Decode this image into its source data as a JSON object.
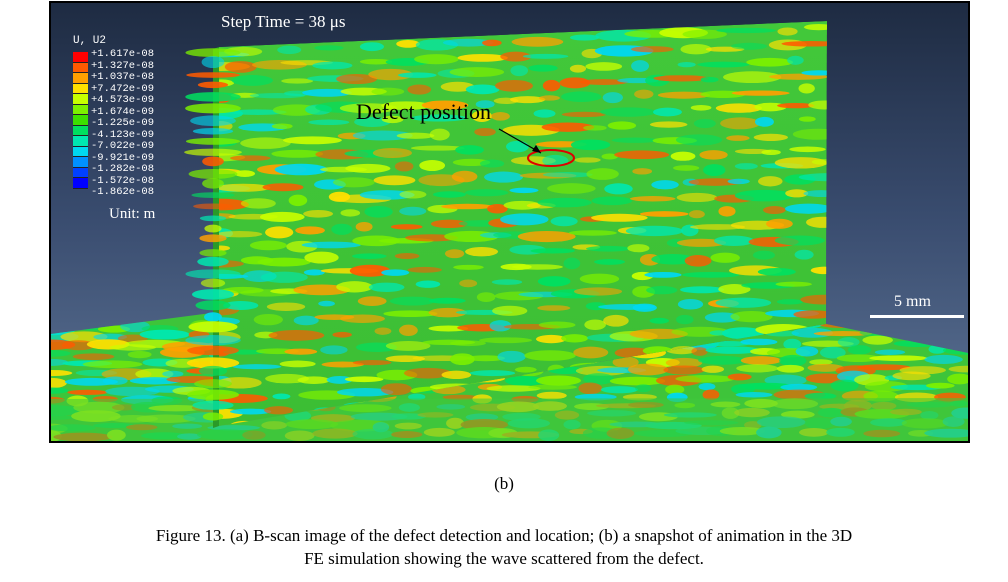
{
  "figure": {
    "step_time": "Step Time = 38 μs",
    "legend": {
      "title": "U, U2",
      "values": [
        "+1.617e-08",
        "+1.327e-08",
        "+1.037e-08",
        "+7.472e-09",
        "+4.573e-09",
        "+1.674e-09",
        "-1.225e-09",
        "-4.123e-09",
        "-7.022e-09",
        "-9.921e-09",
        "-1.282e-08",
        "-1.572e-08",
        "-1.862e-08"
      ],
      "colors": [
        "#ff0000",
        "#ff5a00",
        "#ffa000",
        "#ffe000",
        "#c8ff00",
        "#7cf000",
        "#3ce000",
        "#00e060",
        "#00e8b0",
        "#00d8f0",
        "#0090ff",
        "#0040ff",
        "#0000ff"
      ],
      "unit": "Unit: m"
    },
    "annotation": "Defect position",
    "scale_bar": "5 mm"
  },
  "subfigure_label": "(b)",
  "caption": {
    "line1": "Figure 13. (a) B-scan image of the defect detection and location; (b) a snapshot of animation in the 3D",
    "line2": "FE simulation showing the wave scattered from the defect."
  }
}
